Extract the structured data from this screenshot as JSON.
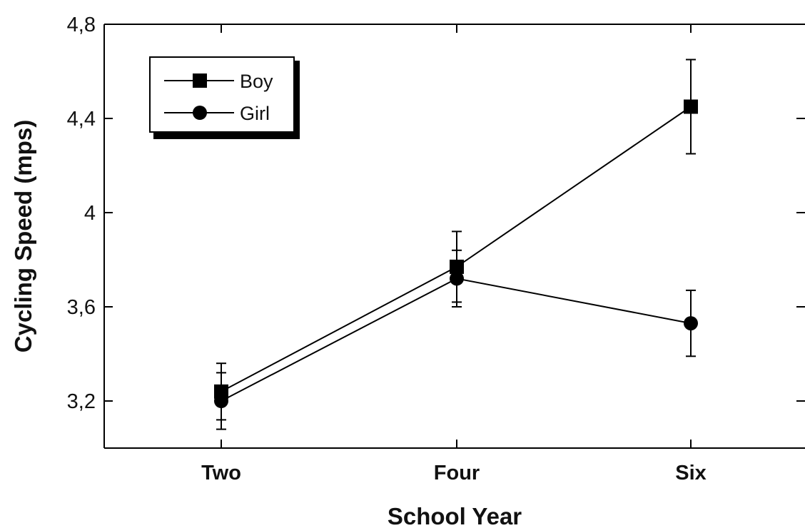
{
  "chart_data": {
    "type": "line",
    "categories": [
      "Two",
      "Four",
      "Six"
    ],
    "xlabel": "School Year",
    "ylabel": "Cycling Speed (mps)",
    "ylim": [
      3.0,
      4.8
    ],
    "yticks": [
      3.2,
      3.6,
      4.0,
      4.4,
      4.8
    ],
    "ytick_labels": [
      "3,2",
      "3,6",
      "4",
      "4,4",
      "4,8"
    ],
    "grid": false,
    "legend_position": "top-left",
    "series": [
      {
        "name": "Boy",
        "marker": "square",
        "values": [
          3.24,
          3.77,
          4.45
        ],
        "error": [
          0.12,
          0.15,
          0.2
        ],
        "color": "#000000"
      },
      {
        "name": "Girl",
        "marker": "circle",
        "values": [
          3.2,
          3.72,
          3.53
        ],
        "error": [
          0.12,
          0.12,
          0.14
        ],
        "color": "#000000"
      }
    ]
  }
}
